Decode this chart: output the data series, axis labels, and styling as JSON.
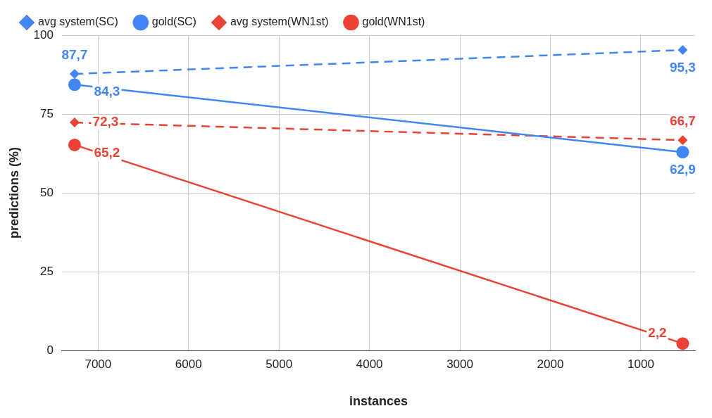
{
  "chart_data": {
    "type": "line",
    "xlabel": "instances",
    "ylabel": "predictions (%)",
    "xlim": [
      7400,
      400
    ],
    "xticks": [
      7000,
      6000,
      5000,
      4000,
      3000,
      2000,
      1000
    ],
    "ylim": [
      0,
      100
    ],
    "yticks": [
      0,
      25,
      50,
      75,
      100
    ],
    "grid": true,
    "legend": "top",
    "x": [
      7260,
      537
    ],
    "series": [
      {
        "name": "avg system(SC)",
        "color": "#4285f4",
        "values": [
          87.7,
          95.3
        ],
        "value_labels": [
          "87,7",
          "95,3"
        ],
        "marker": "diamond",
        "line_style": "dashed"
      },
      {
        "name": "gold(SC)",
        "color": "#4285f4",
        "values": [
          84.3,
          62.9
        ],
        "value_labels": [
          "84,3",
          "62,9"
        ],
        "marker": "circle",
        "line_style": "solid"
      },
      {
        "name": "avg system(WN1st)",
        "color": "#ea4335",
        "values": [
          72.3,
          66.7
        ],
        "value_labels": [
          "72,3",
          "66,7"
        ],
        "marker": "diamond",
        "line_style": "dashed"
      },
      {
        "name": "gold(WN1st)",
        "color": "#ea4335",
        "values": [
          65.2,
          2.2
        ],
        "value_labels": [
          "65,2",
          "2,2"
        ],
        "marker": "circle",
        "line_style": "solid"
      }
    ]
  }
}
